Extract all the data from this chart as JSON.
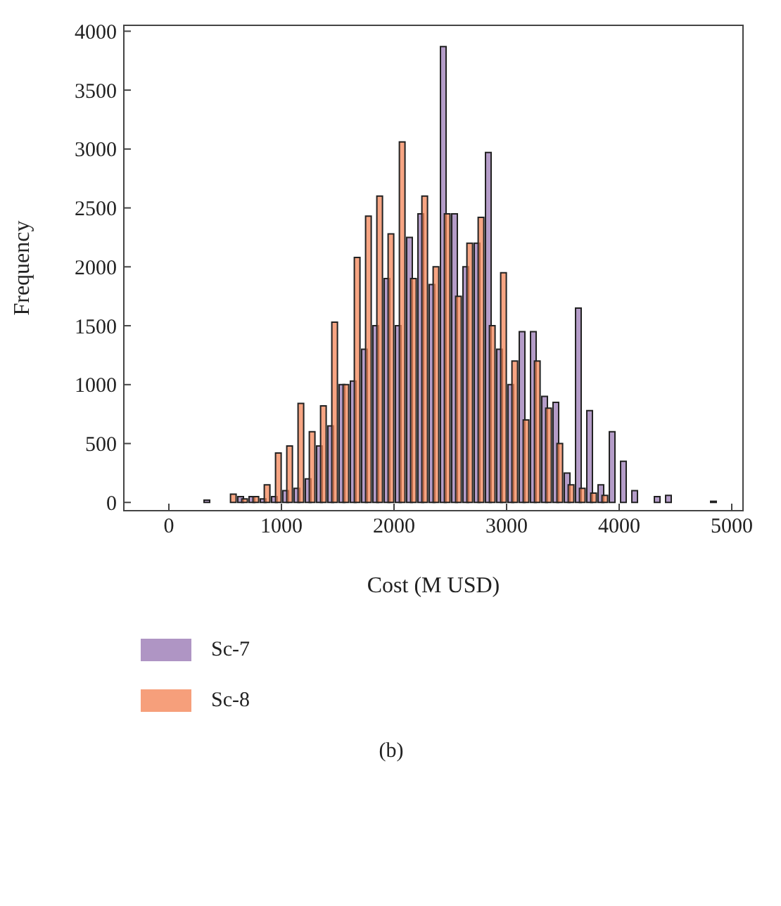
{
  "chart_data": {
    "type": "histogram",
    "xlabel": "Cost (M USD)",
    "ylabel": "Frequency",
    "annotations": [
      "(b)"
    ],
    "bins": [
      300,
      400,
      500,
      600,
      700,
      800,
      900,
      1000,
      1100,
      1200,
      1300,
      1400,
      1500,
      1600,
      1700,
      1800,
      1900,
      2000,
      2100,
      2200,
      2300,
      2400,
      2500,
      2600,
      2700,
      2800,
      2900,
      3000,
      3100,
      3200,
      3300,
      3400,
      3500,
      3600,
      3700,
      3800,
      3900,
      4000,
      4100,
      4200,
      4300,
      4400,
      4500,
      4600,
      4700,
      4800,
      4900
    ],
    "series": [
      {
        "name": "Sc-7",
        "color": "#9b7bb5",
        "values": [
          20,
          0,
          0,
          50,
          50,
          30,
          50,
          100,
          120,
          200,
          480,
          650,
          1000,
          1030,
          1300,
          1500,
          1900,
          1500,
          2250,
          2450,
          1850,
          3870,
          2450,
          2000,
          2200,
          2970,
          1300,
          1000,
          1450,
          1450,
          900,
          850,
          250,
          1650,
          780,
          150,
          600,
          350,
          100,
          0,
          50,
          60,
          0,
          0,
          0,
          10
        ]
      },
      {
        "name": "Sc-8",
        "color": "#f4875a",
        "values": [
          0,
          0,
          70,
          30,
          50,
          150,
          420,
          480,
          840,
          600,
          820,
          1530,
          1000,
          2080,
          2430,
          2600,
          2280,
          3060,
          1900,
          2600,
          2000,
          2450,
          1750,
          2200,
          2420,
          1500,
          1950,
          1200,
          700,
          1200,
          800,
          500,
          150,
          120,
          80,
          60,
          0,
          0,
          0,
          0,
          0,
          0,
          0,
          0,
          0,
          0
        ]
      }
    ],
    "xlim": [
      -400,
      5100
    ],
    "xticks": [
      0,
      1000,
      2000,
      3000,
      4000,
      5000
    ],
    "ylim": [
      -70,
      4050
    ],
    "yticks": [
      0,
      500,
      1000,
      1500,
      2000,
      2500,
      3000,
      3500,
      4000
    ],
    "grid": false,
    "legend": "bottom"
  }
}
